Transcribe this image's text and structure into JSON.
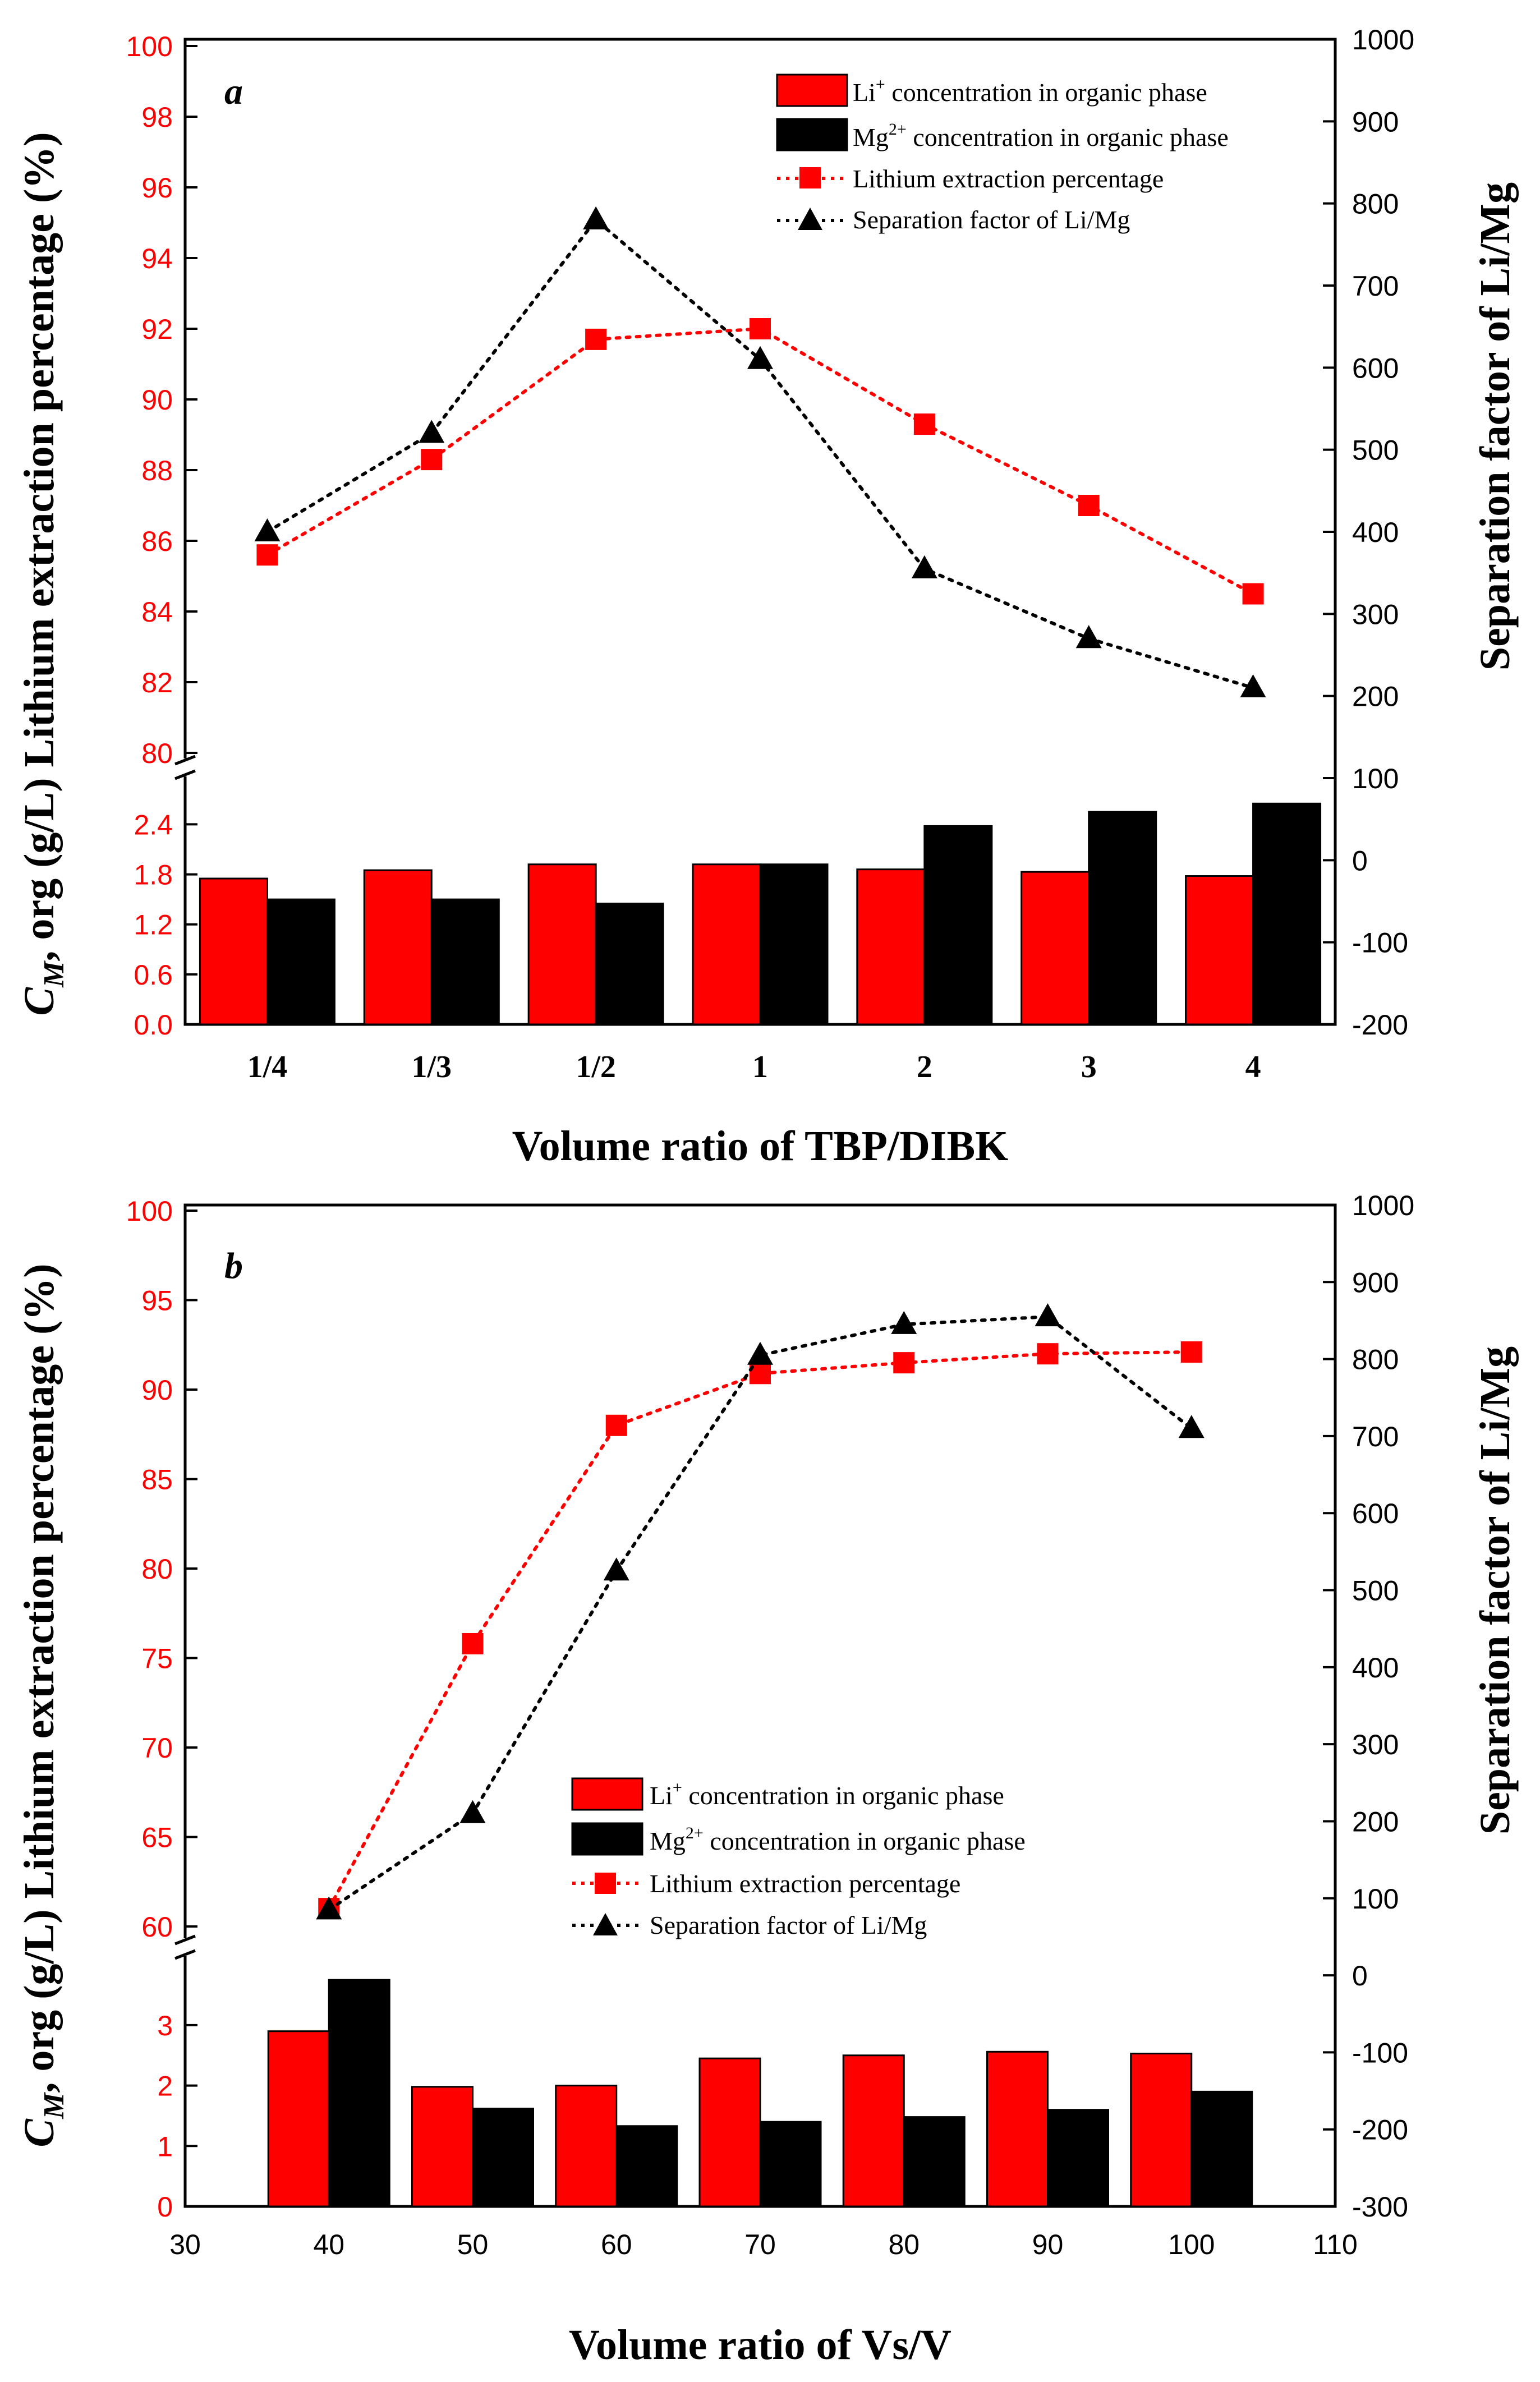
{
  "chart_data": [
    {
      "type": "bar",
      "panel_label": "a",
      "xlabel": "Volume ratio of TBP/DIBK",
      "ylabel_left_prefix": "C",
      "ylabel_left_sub": "M",
      "ylabel_left_rest": ", org (g/L) Lithium extraction percentage (%)",
      "ylabel_right": "Separation factor of Li/Mg",
      "categories": [
        "1/4",
        "1/3",
        "1/2",
        "1",
        "2",
        "3",
        "4"
      ],
      "top_axis": {
        "ylim": [
          80,
          100
        ],
        "ticks": [
          "80",
          "82",
          "84",
          "86",
          "88",
          "90",
          "92",
          "94",
          "96",
          "98",
          "100"
        ]
      },
      "bottom_axis": {
        "ylim": [
          0,
          2.8
        ],
        "ticks": [
          "0.0",
          "0.6",
          "1.2",
          "1.8",
          "2.4"
        ]
      },
      "right_axis": {
        "ylim": [
          -200,
          1000
        ],
        "ticks": [
          "-200",
          "-100",
          "0",
          "100",
          "200",
          "300",
          "400",
          "500",
          "600",
          "700",
          "800",
          "900",
          "1000"
        ]
      },
      "series": [
        {
          "name": "Li⁺ concentration in organic phase",
          "kind": "bar",
          "color": "#ff0000",
          "values": [
            1.75,
            1.85,
            1.92,
            1.92,
            1.86,
            1.83,
            1.78
          ]
        },
        {
          "name": "Mg²⁺ concentration in organic phase",
          "kind": "bar",
          "color": "#000000",
          "values": [
            1.5,
            1.5,
            1.45,
            1.92,
            2.38,
            2.55,
            2.65
          ]
        },
        {
          "name": "Lithium extraction percentage",
          "kind": "line",
          "color": "#ff0000",
          "axis": "left",
          "values": [
            85.6,
            88.3,
            91.7,
            92.0,
            89.3,
            87.0,
            84.5
          ]
        },
        {
          "name": "Separation factor of Li/Mg",
          "kind": "line",
          "color": "#000000",
          "axis": "right",
          "values": [
            400,
            520,
            780,
            610,
            355,
            270,
            210
          ]
        }
      ],
      "legend": {
        "li_label": "Li",
        "li_sup": "+",
        "li_rest": " concentration in organic phase",
        "mg_label": "Mg",
        "mg_sup": "2+",
        "mg_rest": " concentration in organic phase",
        "ext_label": "Lithium extraction percentage",
        "sep_label": "Separation factor of Li/Mg"
      }
    },
    {
      "type": "bar",
      "panel_label": "b",
      "xlabel": "Volume ratio of Vs/V",
      "ylabel_left_prefix": "C",
      "ylabel_left_sub": "M",
      "ylabel_left_rest": ", org (g/L) Lithium extraction percentage (%)",
      "ylabel_right": "Separation factor of Li/Mg",
      "x": [
        40,
        50,
        60,
        70,
        80,
        90,
        100
      ],
      "xlim": [
        30,
        110
      ],
      "x_ticks": [
        "30",
        "40",
        "50",
        "60",
        "70",
        "80",
        "90",
        "100",
        "110"
      ],
      "top_axis": {
        "ylim": [
          60,
          100
        ],
        "ticks": [
          "60",
          "65",
          "70",
          "75",
          "80",
          "85",
          "90",
          "95",
          "100"
        ]
      },
      "bottom_axis": {
        "ylim": [
          0,
          3.9
        ],
        "ticks": [
          "0",
          "1",
          "2",
          "3"
        ]
      },
      "right_axis": {
        "ylim": [
          -300,
          1000
        ],
        "ticks": [
          "-300",
          "-200",
          "-100",
          "0",
          "100",
          "200",
          "300",
          "400",
          "500",
          "600",
          "700",
          "800",
          "900",
          "1000"
        ]
      },
      "series": [
        {
          "name": "Li⁺ concentration in organic phase",
          "kind": "bar",
          "color": "#ff0000",
          "values": [
            2.9,
            1.98,
            2.0,
            2.45,
            2.5,
            2.56,
            2.53
          ]
        },
        {
          "name": "Mg²⁺ concentration in organic phase",
          "kind": "bar",
          "color": "#000000",
          "values": [
            3.75,
            1.62,
            1.33,
            1.4,
            1.48,
            1.6,
            1.9
          ]
        },
        {
          "name": "Lithium extraction percentage",
          "kind": "line",
          "color": "#ff0000",
          "axis": "left",
          "values": [
            61.0,
            75.8,
            88.0,
            90.9,
            91.5,
            92.0,
            92.1
          ]
        },
        {
          "name": "Separation factor of Li/Mg",
          "kind": "line",
          "color": "#000000",
          "axis": "right",
          "values": [
            85,
            210,
            525,
            805,
            845,
            855,
            710
          ]
        }
      ],
      "legend": {
        "li_label": "Li",
        "li_sup": "+",
        "li_rest": " concentration in organic phase",
        "mg_label": "Mg",
        "mg_sup": "2+",
        "mg_rest": " concentration in organic phase",
        "ext_label": "Lithium extraction percentage",
        "sep_label": "Separation factor of Li/Mg"
      }
    }
  ]
}
